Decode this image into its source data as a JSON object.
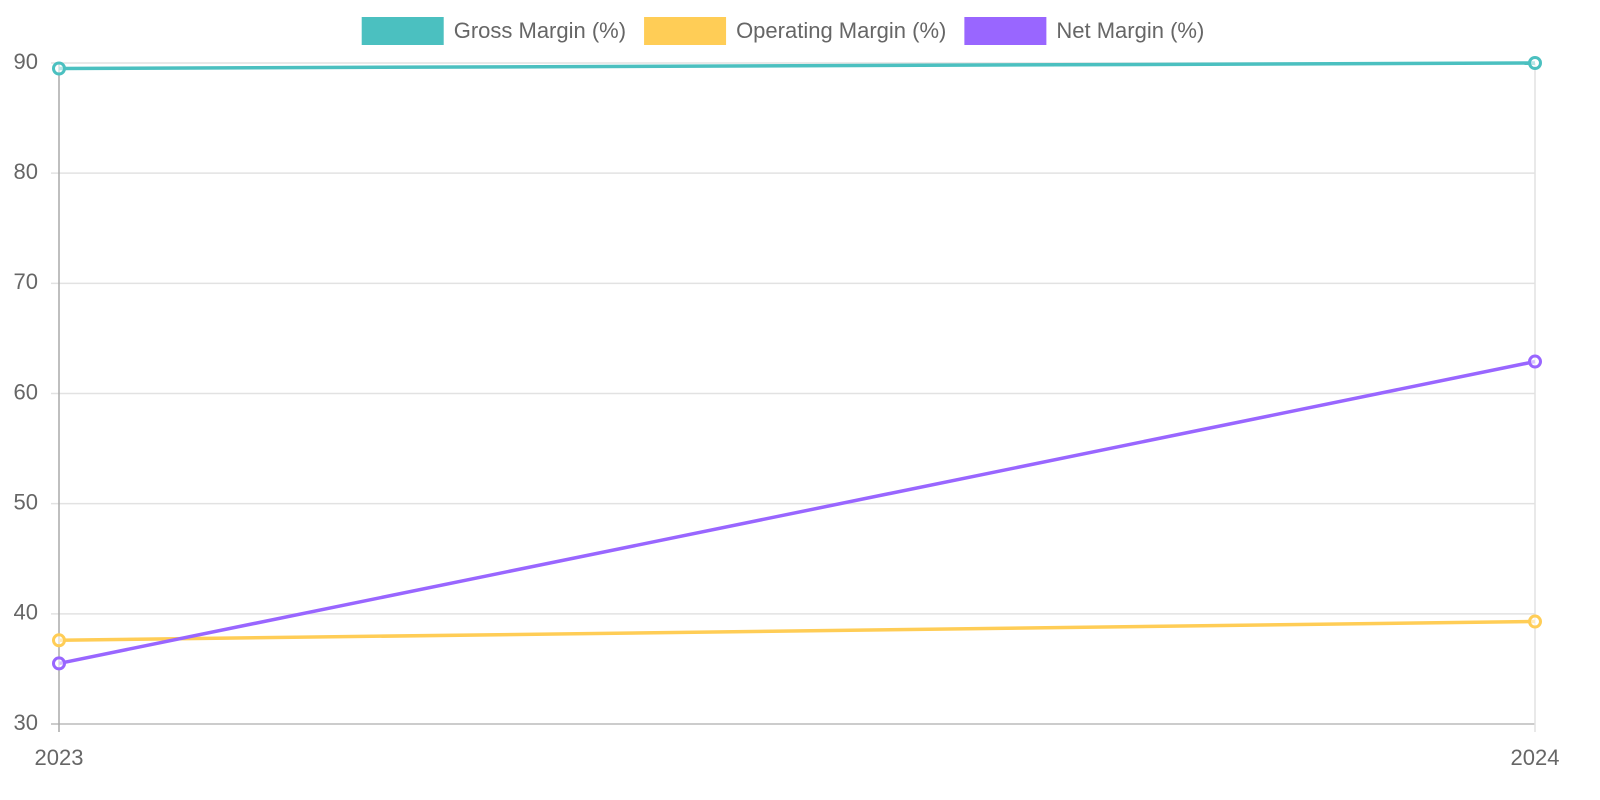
{
  "chart_data": {
    "type": "line",
    "categories": [
      "2023",
      "2024"
    ],
    "series": [
      {
        "name": "Gross Margin (%)",
        "color": "#4bc0c0",
        "values": [
          89.5,
          90.0
        ]
      },
      {
        "name": "Operating Margin (%)",
        "color": "#ffcd56",
        "values": [
          37.6,
          39.3
        ]
      },
      {
        "name": "Net Margin (%)",
        "color": "#9966ff",
        "values": [
          35.5,
          62.9
        ]
      }
    ],
    "ylim": [
      30,
      90
    ],
    "yticks": [
      30,
      40,
      50,
      60,
      70,
      80,
      90
    ],
    "grid": true,
    "legend": "top"
  }
}
